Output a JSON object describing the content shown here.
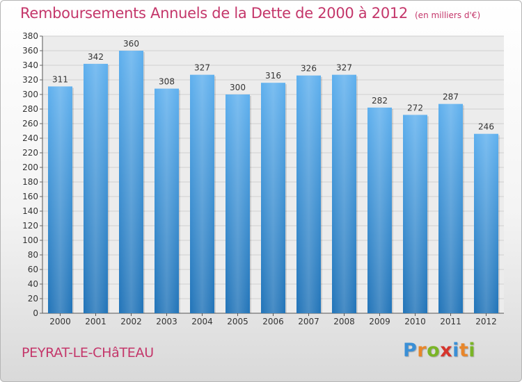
{
  "title": "Remboursements Annuels de la Dette de 2000 à 2012",
  "unit": "(en milliers d'€)",
  "commune": "PEYRAT-LE-CHâTEAU",
  "logo": {
    "letters": [
      "P",
      "r",
      "o",
      "x",
      "i",
      "t",
      "i"
    ],
    "colors": [
      "#3a8fd6",
      "#e8862a",
      "#7ab526",
      "#d6342c",
      "#3a8fd6",
      "#e8862a",
      "#7ab526"
    ]
  },
  "chart_data": {
    "type": "bar",
    "title": "Remboursements Annuels de la Dette de 2000 à 2012",
    "subtitle": "(en milliers d'€)",
    "categories": [
      "2000",
      "2001",
      "2002",
      "2003",
      "2004",
      "2005",
      "2006",
      "2007",
      "2008",
      "2009",
      "2010",
      "2011",
      "2012"
    ],
    "values": [
      311,
      342,
      360,
      308,
      327,
      300,
      316,
      326,
      327,
      282,
      272,
      287,
      246
    ],
    "ylim": [
      0,
      380
    ],
    "ytick_step": 20,
    "grid": true,
    "bar_color": "#3a8fd6",
    "grid_color": "#cfcfcf"
  }
}
